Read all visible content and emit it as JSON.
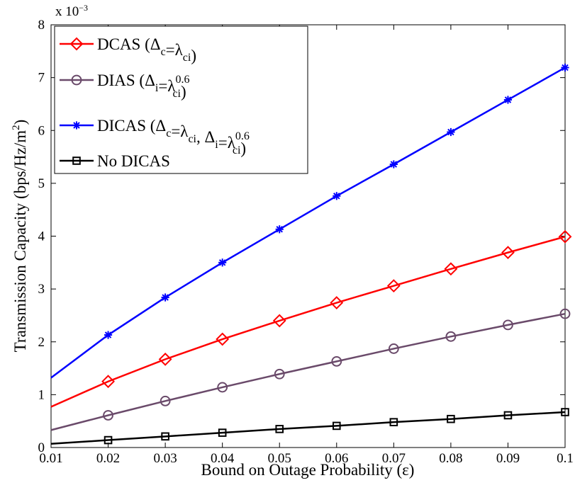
{
  "chart_data": {
    "type": "line",
    "x": [
      0.01,
      0.02,
      0.03,
      0.04,
      0.05,
      0.06,
      0.07,
      0.08,
      0.09,
      0.1
    ],
    "xlim": [
      0.01,
      0.1
    ],
    "ylim": [
      0,
      8
    ],
    "xticks": [
      "0.01",
      "0.02",
      "0.03",
      "0.04",
      "0.05",
      "0.06",
      "0.07",
      "0.08",
      "0.09",
      "0.1"
    ],
    "yticks": [
      "0",
      "1",
      "2",
      "3",
      "4",
      "5",
      "6",
      "7",
      "8"
    ],
    "y_exponent": {
      "base": "x 10",
      "power": "−3"
    },
    "xlabel": "Bound on Outage Probability (ε)",
    "ylabel": {
      "text": "Transmission Capacity (bps/Hz/m",
      "sup": "2",
      "tail": ")"
    },
    "grid": false,
    "legend_position": "top-left",
    "series": [
      {
        "key": "dcas",
        "name": "DCAS (Δc=λci)",
        "legend": [
          {
            "t": "DCAS (Δ"
          },
          {
            "t": "c",
            "sub": true
          },
          {
            "t": "=λ"
          },
          {
            "t": "ci",
            "sub": true
          },
          {
            "t": ")"
          }
        ],
        "color": "#ff0000",
        "marker": "diamond",
        "values": [
          0.77,
          1.25,
          1.67,
          2.05,
          2.4,
          2.74,
          3.06,
          3.38,
          3.69,
          3.99
        ]
      },
      {
        "key": "dias",
        "name": "DIAS (Δi=λci0.6)",
        "legend": [
          {
            "t": "DIAS (Δ"
          },
          {
            "t": "i",
            "sub": true
          },
          {
            "t": "=λ"
          },
          {
            "t": "ci",
            "sub": true,
            "sup": "0.6"
          },
          {
            "t": ")"
          }
        ],
        "color": "#6a4a6a",
        "marker": "circle",
        "values": [
          0.33,
          0.61,
          0.88,
          1.14,
          1.39,
          1.63,
          1.87,
          2.1,
          2.32,
          2.53
        ]
      },
      {
        "key": "dicas",
        "name": "DICAS (Δc=λci, Δi=λci0.6)",
        "legend": [
          {
            "t": "DICAS (Δ"
          },
          {
            "t": "c",
            "sub": true
          },
          {
            "t": "=λ"
          },
          {
            "t": "ci",
            "sub": true
          },
          {
            "t": ", Δ"
          },
          {
            "t": "i",
            "sub": true
          },
          {
            "t": "=λ"
          },
          {
            "t": "ci",
            "sub": true,
            "sup": "0.6"
          },
          {
            "t": ")"
          }
        ],
        "color": "#0000ff",
        "marker": "asterisk",
        "values": [
          1.32,
          2.13,
          2.84,
          3.5,
          4.13,
          4.76,
          5.36,
          5.97,
          6.58,
          7.19
        ]
      },
      {
        "key": "nodicas",
        "name": "No DICAS",
        "legend": [
          {
            "t": "No DICAS"
          }
        ],
        "color": "#000000",
        "marker": "square",
        "values": [
          0.07,
          0.14,
          0.21,
          0.28,
          0.35,
          0.41,
          0.48,
          0.54,
          0.61,
          0.67
        ]
      }
    ]
  }
}
